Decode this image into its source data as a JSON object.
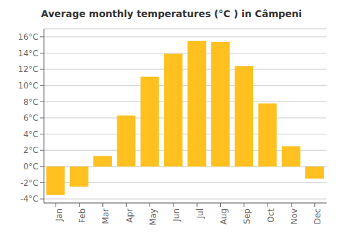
{
  "chart_data": {
    "type": "bar",
    "title": "Average monthly temperatures (°C ) in Câmpeni",
    "categories": [
      "Jan",
      "Feb",
      "Mar",
      "Apr",
      "May",
      "Jun",
      "Jul",
      "Aug",
      "Sep",
      "Oct",
      "Nov",
      "Dec"
    ],
    "values": [
      -3.5,
      -2.5,
      1.3,
      6.3,
      11.1,
      13.9,
      15.5,
      15.4,
      12.4,
      7.8,
      2.5,
      -1.5
    ],
    "color": "#FFC020",
    "ylim": [
      -4.5,
      17.0
    ],
    "yticks": [
      {
        "value": -4,
        "label": "-4°C"
      },
      {
        "value": -2,
        "label": "-2°C"
      },
      {
        "value": 0,
        "label": "0°C"
      },
      {
        "value": 2,
        "label": "2°C"
      },
      {
        "value": 4,
        "label": "4°C"
      },
      {
        "value": 6,
        "label": "6°C"
      },
      {
        "value": 8,
        "label": "8°C"
      },
      {
        "value": 10,
        "label": "10°C"
      },
      {
        "value": 12,
        "label": "12°C"
      },
      {
        "value": 14,
        "label": "14°C"
      },
      {
        "value": 16,
        "label": "16°C"
      }
    ],
    "grid": true
  }
}
